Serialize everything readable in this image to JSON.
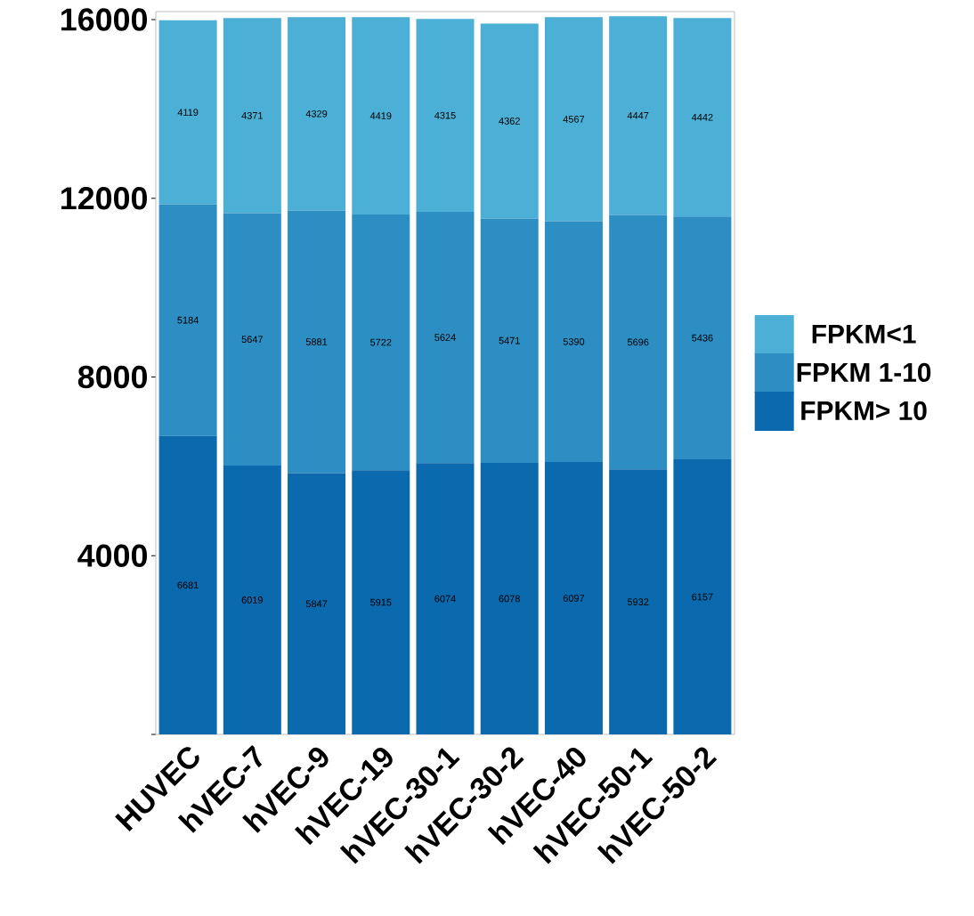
{
  "chart_data": {
    "type": "bar",
    "stacked": true,
    "categories": [
      "HUVEC",
      "hVEC-7",
      "hVEC-9",
      "hVEC-19",
      "hVEC-30-1",
      "hVEC-30-2",
      "hVEC-40",
      "hVEC-50-1",
      "hVEC-50-2"
    ],
    "series": [
      {
        "name": "FPKM> 10",
        "color": "#0b69ad",
        "values": [
          6681,
          6019,
          5847,
          5915,
          6074,
          6078,
          6097,
          5932,
          6157
        ]
      },
      {
        "name": "FPKM 1-10",
        "color": "#2d8ec4",
        "values": [
          5184,
          5647,
          5881,
          5722,
          5624,
          5471,
          5390,
          5696,
          5436
        ]
      },
      {
        "name": "FPKM<1",
        "color": "#4cb0d6",
        "values": [
          4119,
          4371,
          4329,
          4419,
          4315,
          4362,
          4567,
          4447,
          4442
        ]
      }
    ],
    "ylim": [
      0,
      16180
    ],
    "yticks": [
      {
        "value": 0,
        "label": null
      },
      4000,
      8000,
      12000,
      16000
    ],
    "data_labels": true,
    "legend": "right"
  }
}
